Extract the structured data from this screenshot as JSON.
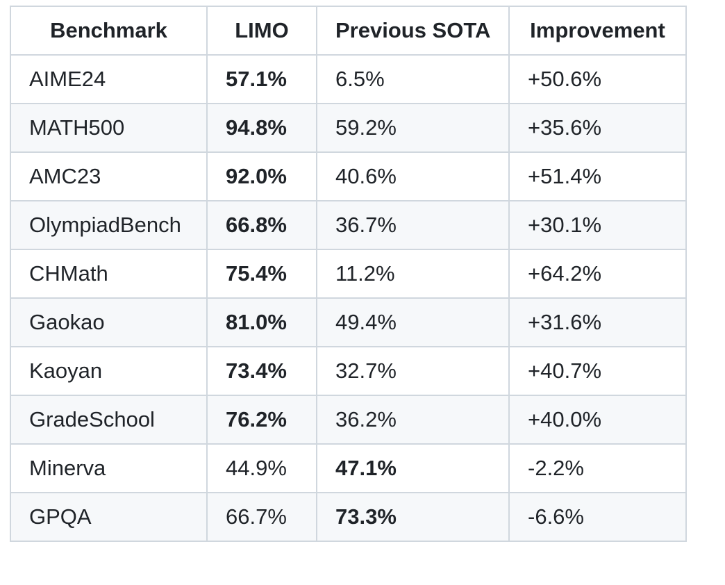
{
  "table": {
    "headers": [
      "Benchmark",
      "LIMO",
      "Previous SOTA",
      "Improvement"
    ],
    "rows": [
      {
        "benchmark": "AIME24",
        "limo": "57.1%",
        "previous_sota": "6.5%",
        "improvement": "+50.6%",
        "best": "limo"
      },
      {
        "benchmark": "MATH500",
        "limo": "94.8%",
        "previous_sota": "59.2%",
        "improvement": "+35.6%",
        "best": "limo"
      },
      {
        "benchmark": "AMC23",
        "limo": "92.0%",
        "previous_sota": "40.6%",
        "improvement": "+51.4%",
        "best": "limo"
      },
      {
        "benchmark": "OlympiadBench",
        "limo": "66.8%",
        "previous_sota": "36.7%",
        "improvement": "+30.1%",
        "best": "limo"
      },
      {
        "benchmark": "CHMath",
        "limo": "75.4%",
        "previous_sota": "11.2%",
        "improvement": "+64.2%",
        "best": "limo"
      },
      {
        "benchmark": "Gaokao",
        "limo": "81.0%",
        "previous_sota": "49.4%",
        "improvement": "+31.6%",
        "best": "limo"
      },
      {
        "benchmark": "Kaoyan",
        "limo": "73.4%",
        "previous_sota": "32.7%",
        "improvement": "+40.7%",
        "best": "limo"
      },
      {
        "benchmark": "GradeSchool",
        "limo": "76.2%",
        "previous_sota": "36.2%",
        "improvement": "+40.0%",
        "best": "limo"
      },
      {
        "benchmark": "Minerva",
        "limo": "44.9%",
        "previous_sota": "47.1%",
        "improvement": "-2.2%",
        "best": "previous_sota"
      },
      {
        "benchmark": "GPQA",
        "limo": "66.7%",
        "previous_sota": "73.3%",
        "improvement": "-6.6%",
        "best": "previous_sota"
      }
    ]
  },
  "colors": {
    "border": "#d0d7de",
    "stripe": "#f6f8fa",
    "text": "#1f2328"
  }
}
